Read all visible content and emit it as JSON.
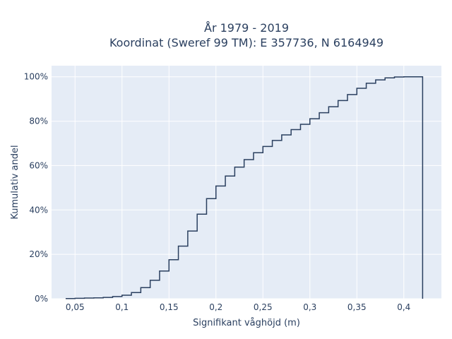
{
  "chart_data": {
    "type": "line",
    "line_shape": "step",
    "title_lines": [
      "År 1979 - 2019",
      "Koordinat (Sweref 99 TM): E 357736, N 6164949"
    ],
    "xlabel": "Signifikant våghöjd (m)",
    "ylabel": "Kumulativ andel",
    "xlim": [
      0.025,
      0.44
    ],
    "ylim": [
      0,
      1.05
    ],
    "xticks": [
      0.05,
      0.1,
      0.15,
      0.2,
      0.25,
      0.3,
      0.35,
      0.4
    ],
    "xtick_labels": [
      "0,05",
      "0,1",
      "0,15",
      "0,2",
      "0,25",
      "0,3",
      "0,35",
      "0,4"
    ],
    "yticks": [
      0,
      0.2,
      0.4,
      0.6,
      0.8,
      1.0
    ],
    "ytick_labels": [
      "0%",
      "20%",
      "40%",
      "60%",
      "80%",
      "100%"
    ],
    "grid": true,
    "plot_background": "#e5ecf6",
    "grid_color": "#ffffff",
    "line_color": "#2a3f5f",
    "series": [
      {
        "x": [
          0.04,
          0.05,
          0.06,
          0.07,
          0.08,
          0.09,
          0.1,
          0.11,
          0.12,
          0.13,
          0.14,
          0.15,
          0.16,
          0.17,
          0.18,
          0.19,
          0.2,
          0.21,
          0.22,
          0.23,
          0.24,
          0.25,
          0.26,
          0.27,
          0.28,
          0.29,
          0.3,
          0.31,
          0.32,
          0.33,
          0.34,
          0.35,
          0.36,
          0.37,
          0.38,
          0.39,
          0.4,
          0.41,
          0.42
        ],
        "y": [
          0.001,
          0.002,
          0.003,
          0.004,
          0.006,
          0.01,
          0.016,
          0.028,
          0.05,
          0.083,
          0.125,
          0.176,
          0.237,
          0.305,
          0.381,
          0.451,
          0.508,
          0.553,
          0.593,
          0.627,
          0.658,
          0.686,
          0.713,
          0.738,
          0.762,
          0.786,
          0.811,
          0.838,
          0.865,
          0.893,
          0.92,
          0.948,
          0.971,
          0.986,
          0.995,
          0.999,
          1.0,
          1.0,
          0.0
        ]
      }
    ]
  }
}
